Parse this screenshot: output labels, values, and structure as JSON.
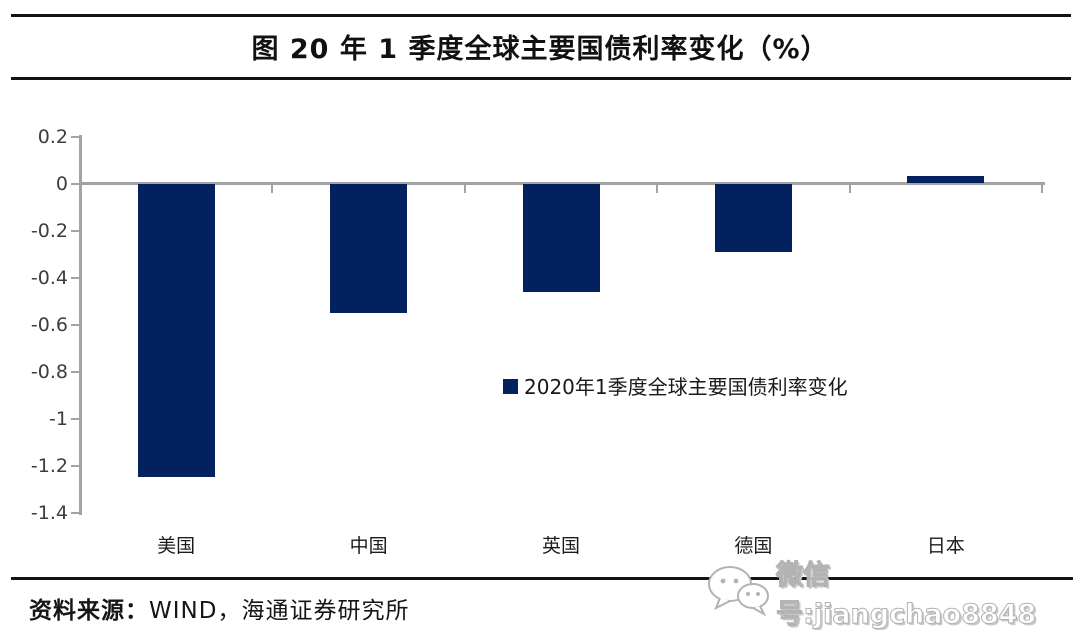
{
  "chart_data": {
    "type": "bar",
    "title": "图  20 年 1 季度全球主要国债利率变化（%）",
    "categories": [
      "美国",
      "中国",
      "英国",
      "德国",
      "日本"
    ],
    "values": [
      -1.25,
      -0.55,
      -0.46,
      -0.29,
      0.03
    ],
    "legend": "2020年1季度全球主要国债利率变化",
    "legend_position": "center-right-inside",
    "y_ticks": [
      0.2,
      0,
      -0.2,
      -0.4,
      -0.6,
      -0.8,
      -1,
      -1.2,
      -1.4
    ],
    "ylim": [
      -1.4,
      0.2
    ],
    "xlabel": "",
    "ylabel": "",
    "grid": false,
    "bar_color": "#02215e",
    "axis_color": "#a3a3a3"
  },
  "footer": {
    "source_label": "资料来源：",
    "source_text": "WIND，海通证券研究所"
  },
  "watermark": {
    "icon": "wechat-icon",
    "text": "微信号:jiangchao8848"
  }
}
